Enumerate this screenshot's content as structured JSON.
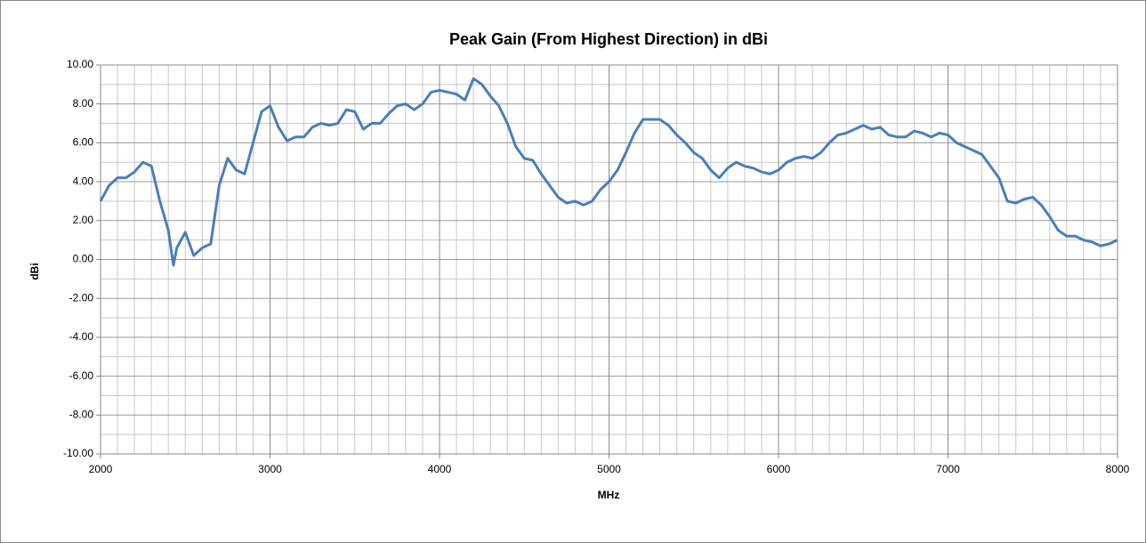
{
  "chart_data": {
    "type": "line",
    "title": "Peak Gain (From Highest Direction) in dBi",
    "x_label": "MHz",
    "y_label": "dBi",
    "x": [
      2000,
      2050,
      2100,
      2150,
      2200,
      2250,
      2300,
      2350,
      2400,
      2430,
      2450,
      2500,
      2550,
      2600,
      2650,
      2700,
      2750,
      2800,
      2850,
      2900,
      2950,
      3000,
      3050,
      3100,
      3150,
      3200,
      3250,
      3300,
      3350,
      3400,
      3450,
      3500,
      3550,
      3600,
      3650,
      3700,
      3750,
      3800,
      3850,
      3900,
      3950,
      4000,
      4050,
      4100,
      4150,
      4200,
      4250,
      4300,
      4350,
      4400,
      4450,
      4500,
      4550,
      4600,
      4650,
      4700,
      4750,
      4800,
      4850,
      4900,
      4950,
      5000,
      5050,
      5100,
      5150,
      5200,
      5250,
      5300,
      5350,
      5400,
      5450,
      5500,
      5550,
      5600,
      5650,
      5700,
      5750,
      5800,
      5850,
      5900,
      5950,
      6000,
      6050,
      6100,
      6150,
      6200,
      6250,
      6300,
      6350,
      6400,
      6450,
      6500,
      6550,
      6600,
      6650,
      6700,
      6750,
      6800,
      6850,
      6900,
      6950,
      7000,
      7050,
      7100,
      7150,
      7200,
      7250,
      7300,
      7350,
      7400,
      7450,
      7500,
      7550,
      7600,
      7650,
      7700,
      7750,
      7800,
      7850,
      7900,
      7950,
      8000
    ],
    "series": [
      {
        "name": "Peak Gain",
        "color": "#4a7ebb",
        "values": [
          3.0,
          3.8,
          4.2,
          4.2,
          4.5,
          5.0,
          4.8,
          3.0,
          1.5,
          -0.3,
          0.6,
          1.4,
          0.2,
          0.6,
          0.8,
          3.8,
          5.2,
          4.6,
          4.4,
          6.0,
          7.6,
          7.9,
          6.8,
          6.1,
          6.3,
          6.3,
          6.8,
          7.0,
          6.9,
          7.0,
          7.7,
          7.6,
          6.7,
          7.0,
          7.0,
          7.5,
          7.9,
          8.0,
          7.7,
          8.0,
          8.6,
          8.7,
          8.6,
          8.5,
          8.2,
          9.3,
          9.0,
          8.4,
          7.9,
          7.0,
          5.8,
          5.2,
          5.1,
          4.4,
          3.8,
          3.2,
          2.9,
          3.0,
          2.8,
          3.0,
          3.6,
          4.0,
          4.6,
          5.5,
          6.5,
          7.2,
          7.2,
          7.2,
          6.9,
          6.4,
          6.0,
          5.5,
          5.2,
          4.6,
          4.2,
          4.7,
          5.0,
          4.8,
          4.7,
          4.5,
          4.4,
          4.6,
          5.0,
          5.2,
          5.3,
          5.2,
          5.5,
          6.0,
          6.4,
          6.5,
          6.7,
          6.9,
          6.7,
          6.8,
          6.4,
          6.3,
          6.3,
          6.6,
          6.5,
          6.3,
          6.5,
          6.4,
          6.0,
          5.8,
          5.6,
          5.4,
          4.8,
          4.2,
          3.0,
          2.9,
          3.1,
          3.2,
          2.8,
          2.2,
          1.5,
          1.2,
          1.2,
          1.0,
          0.9,
          0.7,
          0.8,
          1.0
        ]
      }
    ],
    "xlim": [
      2000,
      8000
    ],
    "xticks": [
      2000,
      3000,
      4000,
      5000,
      6000,
      7000,
      8000
    ],
    "ylim": [
      -10,
      10
    ],
    "yticks": [
      {
        "value": -10,
        "label": "-10.00"
      },
      {
        "value": -8,
        "label": "-8.00"
      },
      {
        "value": -6,
        "label": "-6.00"
      },
      {
        "value": -4,
        "label": "-4.00"
      },
      {
        "value": -2,
        "label": "-2.00"
      },
      {
        "value": 0,
        "label": "0.00"
      },
      {
        "value": 2,
        "label": "2.00"
      },
      {
        "value": 4,
        "label": "4.00"
      },
      {
        "value": 6,
        "label": "6.00"
      },
      {
        "value": 8,
        "label": "8.00"
      },
      {
        "value": 10,
        "label": "10.00"
      }
    ],
    "grid": true,
    "legend": false
  }
}
